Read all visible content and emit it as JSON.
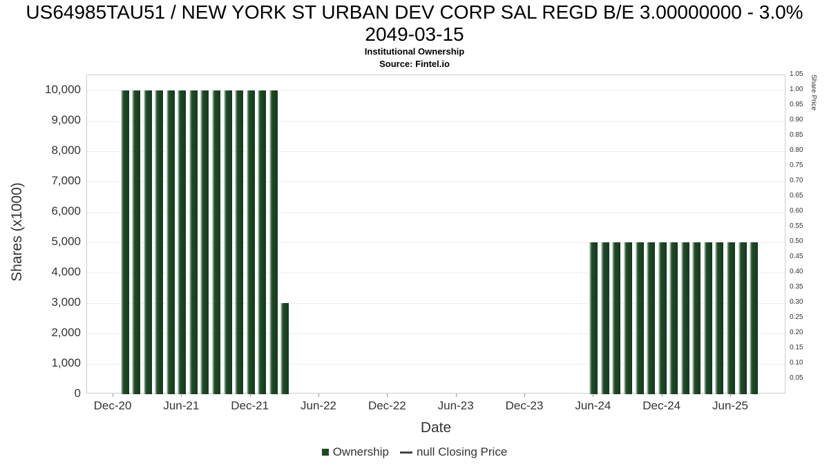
{
  "chart_data": {
    "type": "bar",
    "title": "US64985TAU51 / NEW YORK ST URBAN DEV CORP SAL REGD B/E 3.00000000 - 3.0% 2049-03-15",
    "subtitle": "Institutional Ownership",
    "source": "Source: Fintel.io",
    "xlabel": "Date",
    "ylabel_left": "Shares (x1000)",
    "ylabel_right": "Share Price",
    "grid": true,
    "legend_position": "bottom",
    "x_tick_labels": [
      "Dec-20",
      "Jun-21",
      "Dec-21",
      "Jun-22",
      "Dec-22",
      "Jun-23",
      "Dec-23",
      "Jun-24",
      "Dec-24",
      "Jun-25"
    ],
    "x_tick_month_step": 6,
    "y_left_tick_labels": [
      "0",
      "1,000",
      "2,000",
      "3,000",
      "4,000",
      "5,000",
      "6,000",
      "7,000",
      "8,000",
      "9,000",
      "10,000"
    ],
    "y_left_tick_step": 1000,
    "ylim_left": [
      0,
      10000
    ],
    "y_right_tick_labels": [
      "0.05",
      "0.10",
      "0.15",
      "0.20",
      "0.25",
      "0.30",
      "0.35",
      "0.40",
      "0.45",
      "0.50",
      "0.55",
      "0.60",
      "0.65",
      "0.70",
      "0.75",
      "0.80",
      "0.85",
      "0.90",
      "0.95",
      "1.00",
      "1.05"
    ],
    "y_right_tick_step": 0.05,
    "ylim_right": [
      0,
      1.05
    ],
    "colors": {
      "bar": "#1d4a26",
      "bar_highlight": "#c3d3c5",
      "grid": "#ececec",
      "axis_border": "#cccccc",
      "text": "#333333"
    },
    "legend": [
      {
        "label": "Ownership",
        "marker": "square",
        "color": "#1d4a26"
      },
      {
        "label": "null Closing Price",
        "marker": "dash",
        "color": "#444444"
      }
    ],
    "series": [
      {
        "name": "Ownership",
        "type": "bar",
        "color": "#1d4a26",
        "points": [
          {
            "month": "2021-01",
            "value": 10000
          },
          {
            "month": "2021-02",
            "value": 10000
          },
          {
            "month": "2021-03",
            "value": 10000
          },
          {
            "month": "2021-04",
            "value": 10000
          },
          {
            "month": "2021-05",
            "value": 10000
          },
          {
            "month": "2021-06",
            "value": 10000
          },
          {
            "month": "2021-07",
            "value": 10000
          },
          {
            "month": "2021-08",
            "value": 10000
          },
          {
            "month": "2021-09",
            "value": 10000
          },
          {
            "month": "2021-10",
            "value": 10000
          },
          {
            "month": "2021-11",
            "value": 10000
          },
          {
            "month": "2021-12",
            "value": 10000
          },
          {
            "month": "2022-01",
            "value": 10000
          },
          {
            "month": "2022-02",
            "value": 10000
          },
          {
            "month": "2022-03",
            "value": 3000
          },
          {
            "month": "2024-06",
            "value": 5000
          },
          {
            "month": "2024-07",
            "value": 5000
          },
          {
            "month": "2024-08",
            "value": 5000
          },
          {
            "month": "2024-09",
            "value": 5000
          },
          {
            "month": "2024-10",
            "value": 5000
          },
          {
            "month": "2024-11",
            "value": 5000
          },
          {
            "month": "2024-12",
            "value": 5000
          },
          {
            "month": "2025-01",
            "value": 5000
          },
          {
            "month": "2025-02",
            "value": 5000
          },
          {
            "month": "2025-03",
            "value": 5000
          },
          {
            "month": "2025-04",
            "value": 5000
          },
          {
            "month": "2025-05",
            "value": 5000
          },
          {
            "month": "2025-06",
            "value": 5000
          },
          {
            "month": "2025-07",
            "value": 5000
          },
          {
            "month": "2025-08",
            "value": 5000
          }
        ]
      },
      {
        "name": "null Closing Price",
        "type": "line",
        "color": "#444444",
        "points": []
      }
    ]
  }
}
